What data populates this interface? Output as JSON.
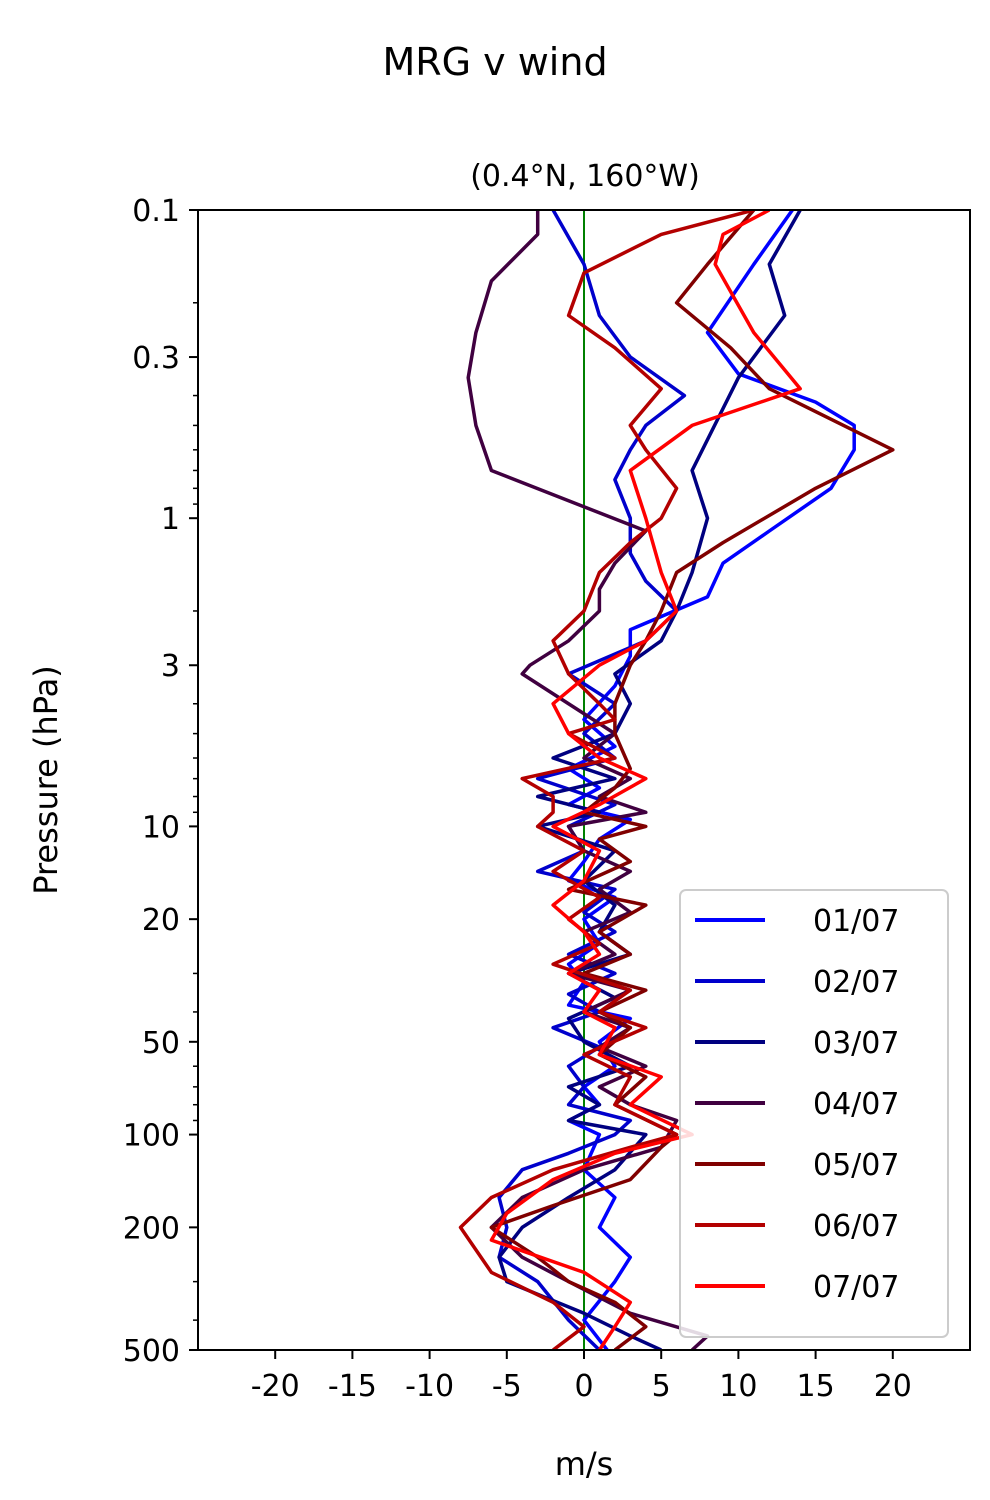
{
  "chart_data": {
    "type": "line",
    "suptitle": "MRG v wind",
    "title": "(0.4°N, 160°W)",
    "xlabel": "m/s",
    "ylabel": "Pressure (hPa)",
    "xlim": [
      -25,
      25
    ],
    "ylim": [
      500,
      0.1
    ],
    "yscale": "log",
    "xticks": [
      -20,
      -15,
      -10,
      -5,
      0,
      5,
      10,
      15,
      20
    ],
    "xtick_labels": [
      "-20",
      "-15",
      "-10",
      "-5",
      "0",
      "5",
      "10",
      "15",
      "20"
    ],
    "yticks": [
      0.1,
      0.3,
      1,
      3,
      10,
      20,
      50,
      100,
      200,
      500
    ],
    "ytick_labels": [
      "0.1",
      "0.3",
      "1",
      "3",
      "10",
      "20",
      "50",
      "100",
      "200",
      "500"
    ],
    "zero_line_color": "#008000",
    "legend_position": "lower-right",
    "series": [
      {
        "name": "01/07",
        "color": "#0000ff",
        "x": [
          1.5,
          0,
          2,
          3,
          1,
          2,
          0,
          1,
          -1,
          1,
          0,
          2,
          1,
          3,
          -1,
          0,
          -1,
          1,
          0,
          2,
          -1,
          0,
          1,
          3,
          -1,
          1,
          -1,
          2,
          0,
          2,
          3,
          3,
          8,
          9,
          12,
          16,
          17.5,
          17.5,
          15,
          10,
          8,
          11,
          13.5
        ],
        "p": [
          500,
          400,
          300,
          250,
          200,
          160,
          130,
          100,
          90,
          80,
          70,
          60,
          50,
          42,
          38,
          32,
          28,
          24,
          20,
          17,
          15,
          13,
          11,
          9.5,
          8.5,
          7.5,
          6.5,
          5.5,
          4.5,
          3.5,
          2.8,
          2.3,
          1.8,
          1.4,
          1.1,
          0.8,
          0.6,
          0.5,
          0.42,
          0.34,
          0.25,
          0.15,
          0.1
        ]
      },
      {
        "name": "02/07",
        "color": "#0000cc",
        "x": [
          1,
          -1,
          -3,
          -5.5,
          -5,
          -5.5,
          -4,
          -1,
          2,
          3,
          -1,
          0,
          -1,
          1,
          -2,
          1,
          -1,
          2,
          -1,
          2,
          0,
          2,
          -3,
          0,
          -1,
          2,
          -3,
          2,
          0,
          2,
          -1,
          4,
          6,
          4,
          3,
          3,
          2,
          3,
          4,
          6.5,
          3,
          1,
          0,
          -2
        ],
        "p": [
          500,
          400,
          300,
          250,
          200,
          160,
          130,
          115,
          100,
          90,
          80,
          70,
          60,
          52,
          45,
          40,
          35,
          30,
          26,
          22,
          19,
          16,
          14,
          12,
          10,
          8.5,
          7,
          6,
          5,
          4,
          3.2,
          2.5,
          2,
          1.6,
          1.3,
          1,
          0.75,
          0.6,
          0.5,
          0.4,
          0.3,
          0.22,
          0.15,
          0.1
        ]
      },
      {
        "name": "03/07",
        "color": "#000080",
        "x": [
          5,
          3,
          0,
          -5,
          -5.5,
          -4,
          -1,
          2,
          4,
          -1,
          1,
          -1,
          3,
          0,
          -1,
          2,
          -1,
          3,
          1,
          2,
          0,
          2,
          -3,
          1,
          -3,
          2,
          -2,
          2,
          3,
          2,
          5,
          6,
          7,
          8,
          7,
          10,
          13,
          12,
          14
        ],
        "p": [
          500,
          450,
          380,
          300,
          250,
          200,
          160,
          130,
          100,
          90,
          80,
          70,
          60,
          50,
          42,
          36,
          30,
          26,
          22,
          18,
          15,
          12,
          10,
          9,
          8,
          7,
          6,
          5,
          4,
          3.2,
          2.5,
          2,
          1.5,
          1,
          0.7,
          0.35,
          0.22,
          0.15,
          0.1
        ]
      },
      {
        "name": "04/07",
        "color": "#400040",
        "x": [
          7,
          8,
          3,
          -1,
          -4,
          -6,
          -4,
          0,
          5,
          6,
          3,
          1,
          4,
          1,
          3,
          0,
          3,
          -1,
          2,
          0,
          3,
          1,
          3,
          0,
          -1,
          4,
          1,
          3,
          0,
          2,
          -4,
          -3.5,
          -1,
          1,
          1,
          2,
          4,
          -6,
          -7,
          -7.5,
          -7,
          -6,
          -3,
          -3
        ],
        "p": [
          500,
          450,
          380,
          300,
          250,
          200,
          160,
          130,
          110,
          90,
          80,
          70,
          60,
          52,
          45,
          40,
          34,
          30,
          26,
          22,
          19,
          16,
          14,
          12,
          10,
          9,
          8,
          7,
          6,
          5,
          3.2,
          3,
          2.5,
          2,
          1.7,
          1.4,
          1.1,
          0.7,
          0.5,
          0.35,
          0.25,
          0.17,
          0.12,
          0.1
        ]
      },
      {
        "name": "05/07",
        "color": "#800000",
        "x": [
          2,
          4,
          2,
          -1,
          -3,
          -6,
          -2,
          3,
          5,
          6,
          2,
          4,
          1,
          3,
          1,
          4,
          0,
          3,
          1,
          4,
          -1,
          3,
          1,
          4,
          0,
          2,
          3,
          2,
          2,
          3,
          4,
          5,
          6,
          9,
          15,
          20,
          12,
          9.5,
          6,
          8,
          11
        ],
        "p": [
          500,
          420,
          350,
          300,
          250,
          200,
          170,
          140,
          110,
          100,
          80,
          65,
          55,
          45,
          40,
          34,
          30,
          26,
          22,
          18,
          16,
          13,
          11,
          10,
          9,
          7.5,
          6.5,
          5,
          4,
          3,
          2.5,
          2,
          1.5,
          1.2,
          0.8,
          0.6,
          0.38,
          0.28,
          0.2,
          0.15,
          0.1
        ]
      },
      {
        "name": "06/07",
        "color": "#b30000",
        "x": [
          -2,
          0,
          -2,
          -6,
          -8,
          -6,
          -2,
          3,
          6,
          2,
          3,
          0,
          4,
          1,
          3,
          -2,
          1,
          -1,
          1,
          -2,
          0,
          -3,
          -2,
          -2,
          -4,
          2,
          -1,
          2,
          1,
          -1,
          -2,
          0,
          1,
          3,
          5,
          6,
          4,
          3,
          5,
          2,
          -1,
          0,
          5,
          11
        ],
        "p": [
          500,
          420,
          350,
          280,
          200,
          160,
          130,
          110,
          100,
          80,
          65,
          55,
          45,
          40,
          34,
          28,
          24,
          20,
          17,
          14,
          12,
          10,
          9,
          8,
          7,
          6,
          5,
          4.5,
          4,
          3.2,
          2.5,
          2,
          1.5,
          1.2,
          1,
          0.8,
          0.6,
          0.5,
          0.38,
          0.28,
          0.22,
          0.16,
          0.12,
          0.1
        ]
      },
      {
        "name": "07/07",
        "color": "#ff0000",
        "x": [
          1,
          2,
          3,
          0,
          -6,
          -5,
          -2,
          2,
          7,
          3,
          5,
          1,
          2,
          0,
          1,
          -1,
          1,
          0,
          -2,
          0,
          1,
          -2,
          1,
          4,
          1,
          -1,
          -2,
          1,
          4,
          6,
          5,
          4,
          3,
          7,
          14,
          11,
          8.5,
          9,
          12
        ],
        "p": [
          500,
          420,
          350,
          280,
          220,
          180,
          140,
          115,
          100,
          80,
          65,
          55,
          45,
          40,
          34,
          30,
          26,
          22,
          18,
          15,
          12,
          10,
          8.5,
          7,
          6,
          5,
          4,
          3,
          2.5,
          2,
          1.5,
          1,
          0.7,
          0.5,
          0.38,
          0.25,
          0.15,
          0.12,
          0.1
        ]
      }
    ]
  }
}
